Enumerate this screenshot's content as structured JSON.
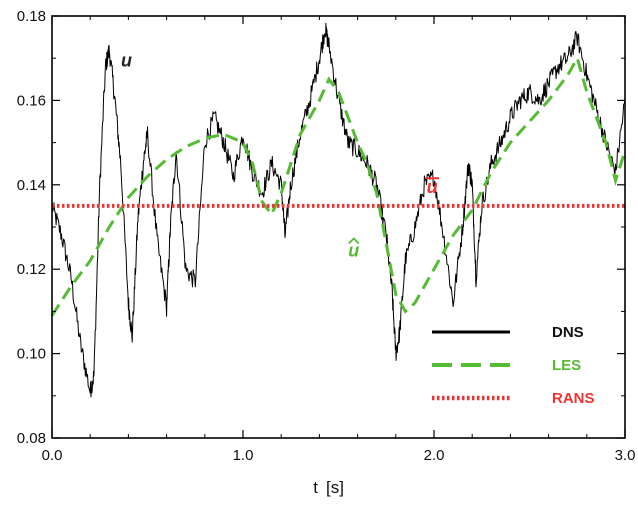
{
  "chart_data": {
    "type": "line",
    "title": "",
    "xlabel": "t",
    "xunit": "[s]",
    "ylabel": "",
    "xlim": [
      0.0,
      3.0
    ],
    "ylim": [
      0.08,
      0.18
    ],
    "grid": false,
    "legend_position": "bottom-right",
    "x_ticks": [
      "0.0",
      "1.0",
      "2.0",
      "3.0"
    ],
    "y_ticks": [
      "0.08",
      "0.10",
      "0.12",
      "0.14",
      "0.16",
      "0.18"
    ],
    "series": [
      {
        "name": "DNS",
        "color": "#000000",
        "style": "solid",
        "x": [
          0.0,
          0.05,
          0.1,
          0.15,
          0.2,
          0.22,
          0.25,
          0.28,
          0.3,
          0.33,
          0.36,
          0.4,
          0.42,
          0.45,
          0.48,
          0.5,
          0.55,
          0.6,
          0.62,
          0.65,
          0.7,
          0.75,
          0.8,
          0.85,
          0.9,
          0.95,
          1.0,
          1.05,
          1.1,
          1.15,
          1.2,
          1.22,
          1.25,
          1.3,
          1.35,
          1.4,
          1.43,
          1.45,
          1.5,
          1.55,
          1.6,
          1.65,
          1.7,
          1.75,
          1.78,
          1.8,
          1.82,
          1.85,
          1.9,
          1.95,
          2.0,
          2.05,
          2.1,
          2.15,
          2.18,
          2.2,
          2.22,
          2.25,
          2.3,
          2.35,
          2.4,
          2.45,
          2.5,
          2.55,
          2.6,
          2.65,
          2.7,
          2.75,
          2.8,
          2.85,
          2.9,
          2.95,
          3.0
        ],
        "y": [
          0.135,
          0.128,
          0.118,
          0.102,
          0.091,
          0.095,
          0.14,
          0.168,
          0.172,
          0.16,
          0.145,
          0.112,
          0.104,
          0.132,
          0.146,
          0.152,
          0.127,
          0.111,
          0.13,
          0.148,
          0.12,
          0.117,
          0.15,
          0.156,
          0.15,
          0.142,
          0.152,
          0.143,
          0.138,
          0.145,
          0.14,
          0.128,
          0.14,
          0.152,
          0.16,
          0.17,
          0.177,
          0.173,
          0.16,
          0.15,
          0.148,
          0.145,
          0.14,
          0.128,
          0.115,
          0.1,
          0.105,
          0.122,
          0.13,
          0.14,
          0.142,
          0.128,
          0.112,
          0.13,
          0.145,
          0.14,
          0.118,
          0.135,
          0.145,
          0.15,
          0.156,
          0.16,
          0.162,
          0.16,
          0.164,
          0.168,
          0.17,
          0.175,
          0.166,
          0.158,
          0.15,
          0.143,
          0.16
        ]
      },
      {
        "name": "LES",
        "color": "#55bb33",
        "style": "dashed",
        "x": [
          0.0,
          0.1,
          0.2,
          0.3,
          0.4,
          0.5,
          0.6,
          0.7,
          0.8,
          0.9,
          1.0,
          1.05,
          1.1,
          1.15,
          1.2,
          1.25,
          1.3,
          1.35,
          1.4,
          1.45,
          1.5,
          1.55,
          1.6,
          1.65,
          1.7,
          1.75,
          1.8,
          1.85,
          1.9,
          2.0,
          2.1,
          2.2,
          2.3,
          2.4,
          2.5,
          2.6,
          2.7,
          2.75,
          2.8,
          2.85,
          2.9,
          2.95,
          3.0
        ],
        "y": [
          0.109,
          0.116,
          0.122,
          0.13,
          0.137,
          0.142,
          0.146,
          0.149,
          0.151,
          0.152,
          0.15,
          0.145,
          0.136,
          0.133,
          0.138,
          0.145,
          0.152,
          0.156,
          0.16,
          0.165,
          0.162,
          0.156,
          0.15,
          0.145,
          0.138,
          0.126,
          0.114,
          0.11,
          0.112,
          0.12,
          0.128,
          0.134,
          0.143,
          0.15,
          0.155,
          0.16,
          0.166,
          0.17,
          0.162,
          0.156,
          0.15,
          0.141,
          0.148
        ]
      },
      {
        "name": "RANS",
        "color": "#ee3333",
        "style": "dotted",
        "x": [
          0.0,
          3.0
        ],
        "y": [
          0.135,
          0.135
        ]
      }
    ],
    "annotations": [
      {
        "text": "u",
        "x": 0.39,
        "y": 0.168,
        "color": "#222222",
        "decoration": "none"
      },
      {
        "text": "u",
        "x": 1.99,
        "y": 0.138,
        "color": "#ee3333",
        "decoration": "overline"
      },
      {
        "text": "û",
        "x": 1.58,
        "y": 0.123,
        "color": "#55bb33",
        "decoration": "hat"
      }
    ]
  }
}
